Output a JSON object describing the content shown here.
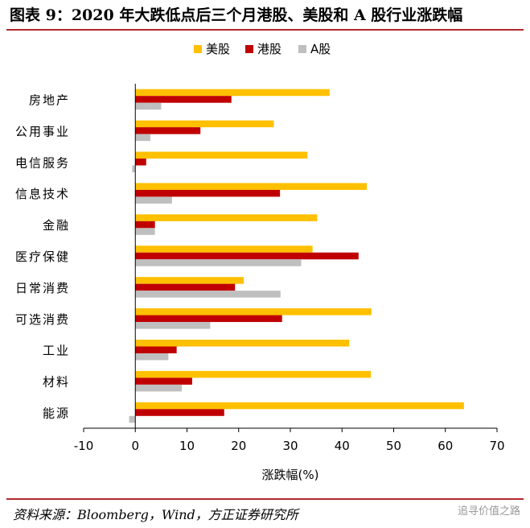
{
  "title": "图表 9：2020 年大跌低点后三个月港股、美股和 A 股行业涨跌幅",
  "source": "资料来源：Bloomberg，Wind，方正证券研究所",
  "watermark": "追寻价值之路",
  "colors": {
    "美股": "#FFC000",
    "港股": "#C00000",
    "A股": "#BFBFBF",
    "rule": "#b3282d"
  },
  "chart_data": {
    "type": "bar",
    "orientation": "horizontal",
    "categories": [
      "房地产",
      "公用事业",
      "电信服务",
      "信息技术",
      "金融",
      "医疗保健",
      "日常消费",
      "可选消费",
      "工业",
      "材料",
      "能源"
    ],
    "series": [
      {
        "name": "美股",
        "values": [
          37.6,
          26.8,
          33.3,
          44.8,
          35.2,
          34.3,
          21.0,
          45.7,
          41.4,
          45.6,
          63.6
        ]
      },
      {
        "name": "港股",
        "values": [
          18.6,
          12.6,
          2.1,
          28.0,
          3.8,
          43.2,
          19.3,
          28.4,
          8.0,
          11.0,
          17.2
        ]
      },
      {
        "name": "A股",
        "values": [
          5.0,
          2.9,
          -0.6,
          7.1,
          3.8,
          32.1,
          28.1,
          14.5,
          6.4,
          9.0,
          -1.2
        ]
      }
    ],
    "xlabel": "涨跌幅(%)",
    "xlim": [
      -10,
      70
    ],
    "xticks": [
      -10,
      0,
      10,
      20,
      30,
      40,
      50,
      60,
      70
    ],
    "legend": "top-center",
    "grid": false
  }
}
